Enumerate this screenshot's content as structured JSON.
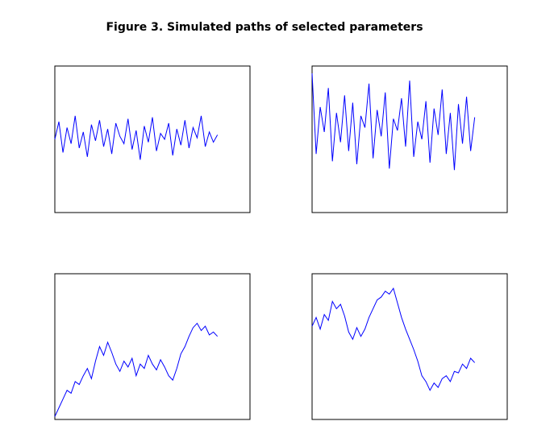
{
  "title": "Figure 3. Simulated paths of selected parameters",
  "chart_data": [
    {
      "type": "line",
      "xlim": [
        0,
        120
      ],
      "ylim": [
        0,
        100
      ],
      "x": [
        0,
        2.5,
        5,
        7.5,
        10,
        12.5,
        15,
        17.5,
        20,
        22.5,
        25,
        27.5,
        30,
        32.5,
        35,
        37.5,
        40,
        42.5,
        45,
        47.5,
        50,
        52.5,
        55,
        57.5,
        60,
        62.5,
        65,
        67.5,
        70,
        72.5,
        75,
        77.5,
        80,
        82.5,
        85,
        87.5,
        90,
        92.5,
        95,
        97.5,
        100
      ],
      "series": [
        {
          "color": "#0000ff",
          "values": [
            50,
            62,
            41,
            58,
            47,
            66,
            44,
            55,
            38,
            60,
            49,
            63,
            45,
            57,
            40,
            61,
            52,
            47,
            64,
            43,
            56,
            36,
            59,
            48,
            65,
            42,
            54,
            50,
            61,
            39,
            57,
            46,
            63,
            44,
            58,
            51,
            66,
            45,
            55,
            48,
            53
          ]
        }
      ]
    },
    {
      "type": "line",
      "xlim": [
        0,
        120
      ],
      "ylim": [
        0,
        100
      ],
      "x": [
        0,
        2.5,
        5,
        7.5,
        10,
        12.5,
        15,
        17.5,
        20,
        22.5,
        25,
        27.5,
        30,
        32.5,
        35,
        37.5,
        40,
        42.5,
        45,
        47.5,
        50,
        52.5,
        55,
        57.5,
        60,
        62.5,
        65,
        67.5,
        70,
        72.5,
        75,
        77.5,
        80,
        82.5,
        85,
        87.5,
        90,
        92.5,
        95,
        97.5,
        100
      ],
      "series": [
        {
          "color": "#0000ff",
          "values": [
            95,
            40,
            72,
            55,
            85,
            35,
            68,
            48,
            80,
            42,
            75,
            33,
            66,
            58,
            88,
            37,
            70,
            52,
            82,
            30,
            64,
            56,
            78,
            45,
            90,
            38,
            62,
            50,
            76,
            34,
            71,
            53,
            84,
            40,
            68,
            29,
            74,
            47,
            79,
            42,
            65
          ]
        }
      ]
    },
    {
      "type": "line",
      "xlim": [
        0,
        120
      ],
      "ylim": [
        0,
        100
      ],
      "x": [
        0,
        2.5,
        5,
        7.5,
        10,
        12.5,
        15,
        17.5,
        20,
        22.5,
        25,
        27.5,
        30,
        32.5,
        35,
        37.5,
        40,
        42.5,
        45,
        47.5,
        50,
        52.5,
        55,
        57.5,
        60,
        62.5,
        65,
        67.5,
        70,
        72.5,
        75,
        77.5,
        80,
        82.5,
        85,
        87.5,
        90,
        92.5,
        95,
        97.5,
        100
      ],
      "series": [
        {
          "color": "#0000ff",
          "values": [
            2,
            8,
            14,
            20,
            18,
            26,
            24,
            30,
            35,
            28,
            40,
            50,
            44,
            53,
            46,
            38,
            33,
            40,
            36,
            42,
            30,
            38,
            35,
            44,
            38,
            34,
            41,
            36,
            30,
            27,
            35,
            45,
            50,
            57,
            63,
            66,
            61,
            64,
            58,
            60,
            57
          ]
        }
      ]
    },
    {
      "type": "line",
      "xlim": [
        0,
        120
      ],
      "ylim": [
        0,
        100
      ],
      "x": [
        0,
        2.5,
        5,
        7.5,
        10,
        12.5,
        15,
        17.5,
        20,
        22.5,
        25,
        27.5,
        30,
        32.5,
        35,
        37.5,
        40,
        42.5,
        45,
        47.5,
        50,
        52.5,
        55,
        57.5,
        60,
        62.5,
        65,
        67.5,
        70,
        72.5,
        75,
        77.5,
        80,
        82.5,
        85,
        87.5,
        90,
        92.5,
        95,
        97.5,
        100
      ],
      "series": [
        {
          "color": "#0000ff",
          "values": [
            64,
            70,
            62,
            72,
            68,
            81,
            76,
            79,
            71,
            60,
            55,
            63,
            57,
            62,
            70,
            76,
            82,
            84,
            88,
            86,
            90,
            80,
            70,
            62,
            55,
            48,
            40,
            30,
            26,
            20,
            25,
            22,
            28,
            30,
            26,
            33,
            32,
            38,
            35,
            42,
            39
          ]
        }
      ]
    }
  ]
}
